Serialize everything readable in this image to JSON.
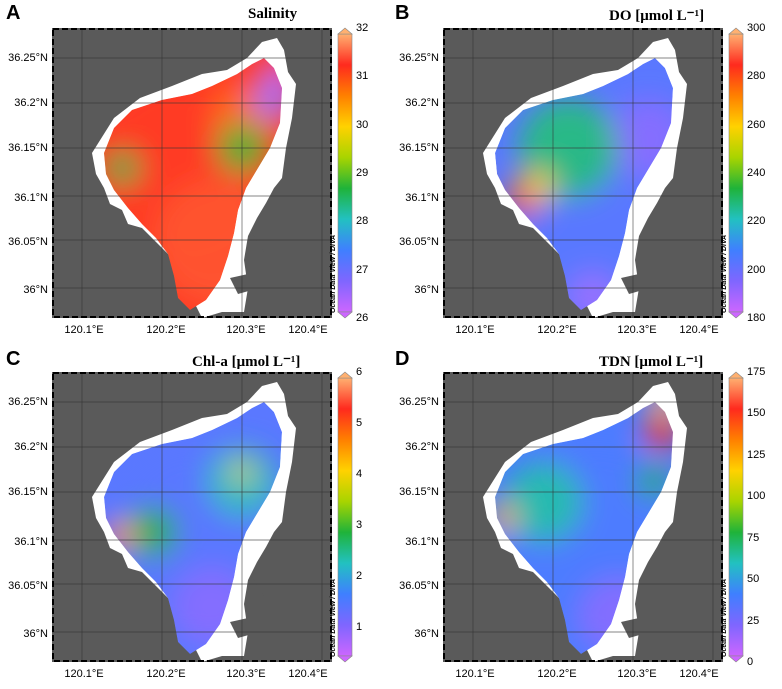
{
  "panels": [
    {
      "letter": "A",
      "title": "Salinity",
      "ticks": [
        "32",
        "31",
        "30",
        "29",
        "28",
        "27",
        "26"
      ],
      "colormap": "salinity"
    },
    {
      "letter": "B",
      "title": "DO [μmol L⁻¹]",
      "ticks": [
        "300",
        "280",
        "260",
        "240",
        "220",
        "200",
        "180"
      ],
      "colormap": "do"
    },
    {
      "letter": "C",
      "title": "Chl-a [μmol L⁻¹]",
      "ticks": [
        "6",
        "5",
        "4",
        "3",
        "2",
        "1"
      ],
      "colormap": "chla"
    },
    {
      "letter": "D",
      "title": "TDN [μmol L⁻¹]",
      "ticks": [
        "175",
        "150",
        "125",
        "100",
        "75",
        "50",
        "25",
        "0"
      ],
      "colormap": "tdn"
    }
  ],
  "lat_labels": [
    "36.25°N",
    "36.2°N",
    "36.15°N",
    "36.1°N",
    "36.05°N",
    "36°N"
  ],
  "lon_labels": [
    "120.1°E",
    "120.2°E",
    "120.3°E",
    "120.4°E"
  ],
  "credit": "Ocean Data View / DIVA",
  "colors": {
    "land": "#5a5a5a",
    "water": "#ffffff",
    "ramp": [
      "#cc66ff",
      "#7f66ff",
      "#3f7fff",
      "#22c1c1",
      "#1fb33a",
      "#a8d400",
      "#ffd200",
      "#ff8000",
      "#ff2a1e",
      "#ffb070"
    ]
  }
}
